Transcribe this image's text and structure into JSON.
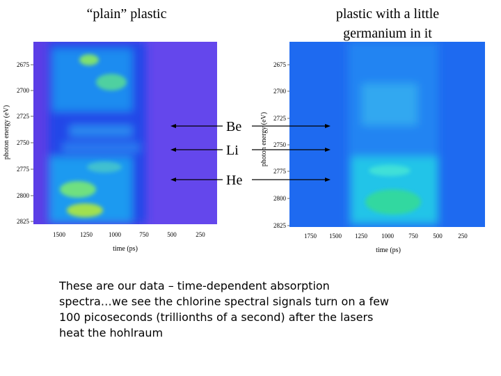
{
  "left_panel": {
    "title": "“plain” plastic",
    "y_axis_label": "photon energy (eV)",
    "x_axis_label": "time (ps)",
    "y_ticks": [
      "2675",
      "2700",
      "2725",
      "2750",
      "2775",
      "2800",
      "2825"
    ],
    "x_ticks": [
      "1500",
      "1250",
      "1000",
      "750",
      "500",
      "250"
    ]
  },
  "right_panel": {
    "title_lines": [
      "plastic with a little",
      "germanium in it"
    ],
    "y_axis_label": "photon energy (eV)",
    "x_axis_label": "time (ps)",
    "y_ticks": [
      "2675",
      "2700",
      "2725",
      "2750",
      "2775",
      "2800",
      "2825"
    ],
    "x_ticks": [
      "1750",
      "1500",
      "1250",
      "1000",
      "750",
      "500",
      "250"
    ]
  },
  "markers": [
    "Be",
    "Li",
    "He"
  ],
  "caption_lines": [
    "These are our data – time-dependent absorption",
    "spectra…we see the chlorine spectral signals turn on a few",
    "100 picoseconds (trillionths of a second) after the lasers",
    "heat the hohlraum"
  ]
}
